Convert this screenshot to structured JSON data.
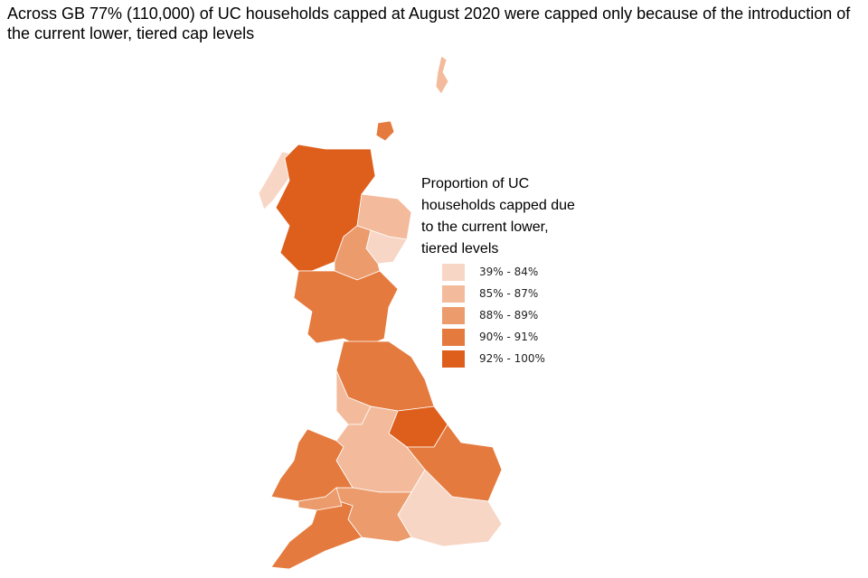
{
  "title": "Across GB 77% (110,000) of UC households capped at August 2020 were capped only because of the introduction of the current lower, tiered cap levels",
  "legend": {
    "title": "Proportion of UC households capped due to the current lower, tiered levels",
    "items": [
      {
        "label": "39% - 84%",
        "color": "#f8d6c6"
      },
      {
        "label": "85% - 87%",
        "color": "#f3bb9c"
      },
      {
        "label": "88% - 89%",
        "color": "#ec9c6c"
      },
      {
        "label": "90% - 91%",
        "color": "#e57a3e"
      },
      {
        "label": "92% - 100%",
        "color": "#de5f1c"
      }
    ]
  }
}
